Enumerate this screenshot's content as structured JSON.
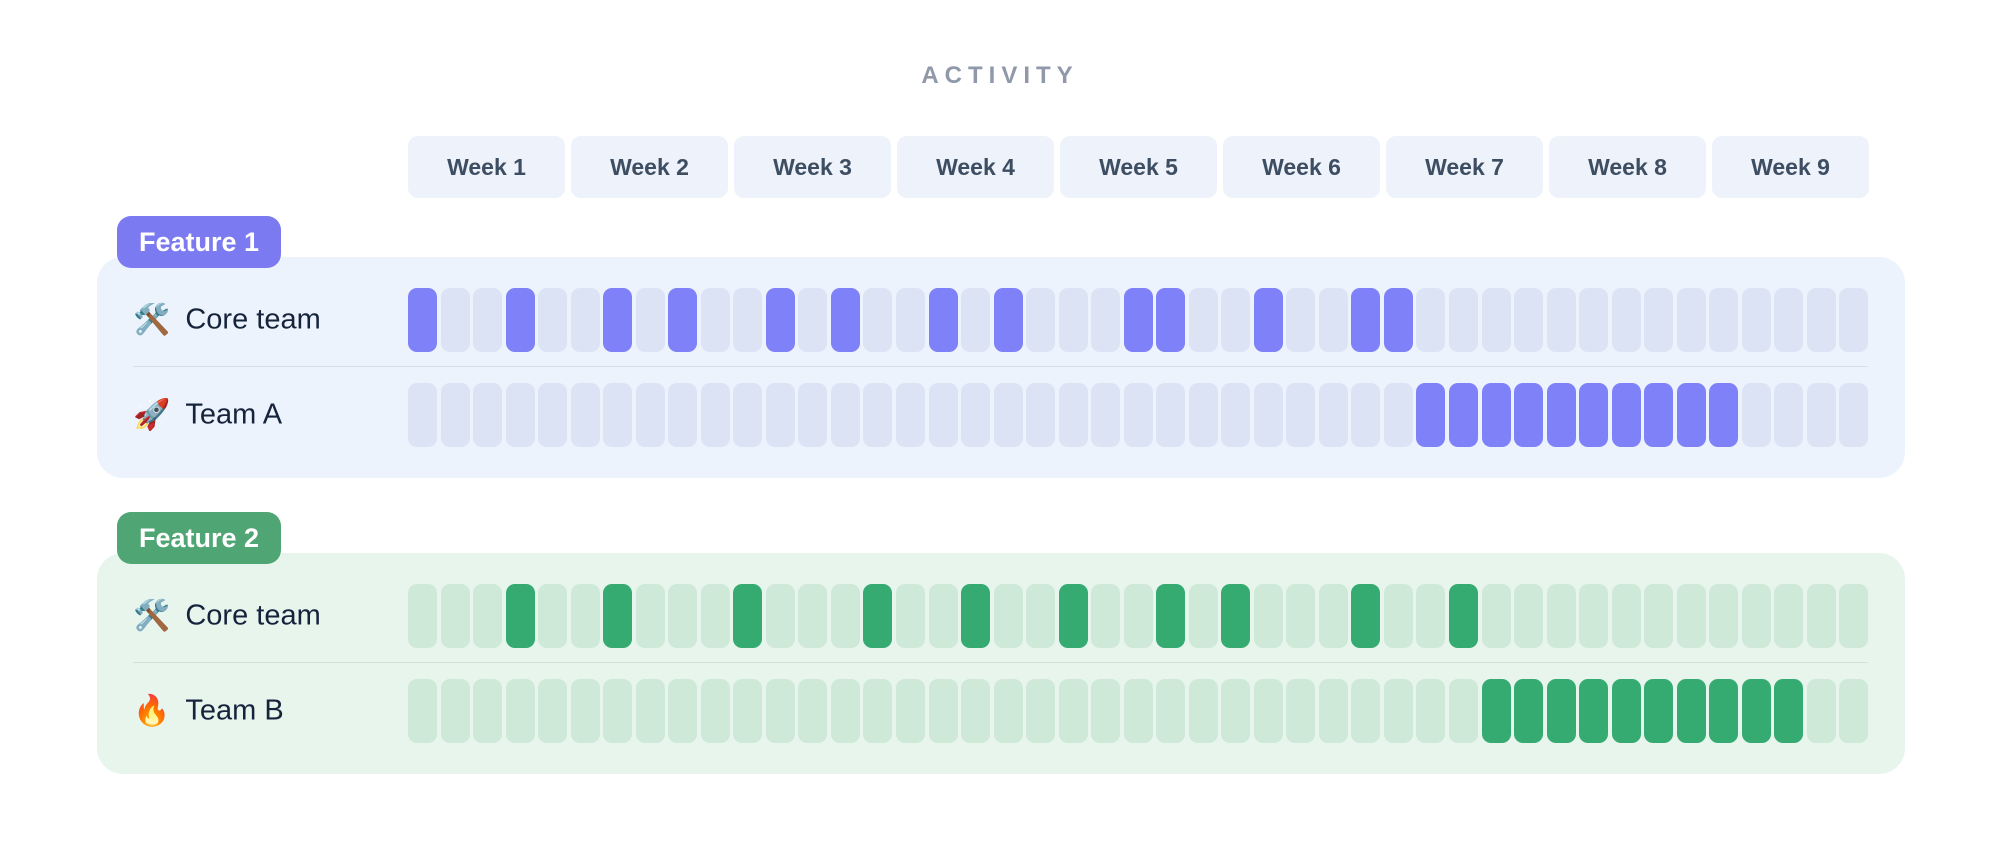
{
  "title": "ACTIVITY",
  "chart_data": {
    "type": "heatmap",
    "title": "ACTIVITY",
    "x_categories": [
      "Week 1",
      "Week 2",
      "Week 3",
      "Week 4",
      "Week 5",
      "Week 6",
      "Week 7",
      "Week 8",
      "Week 9"
    ],
    "cells_per_week": 5,
    "cells_per_row": 45,
    "cell_states": {
      "active": "filled",
      "inactive": "dim"
    },
    "groups": [
      {
        "name": "Feature 1",
        "colors": {
          "badge": "#7c7af0",
          "panel": "#edf3fc",
          "cell_dim": "#dbe3f5",
          "cell_active": "#7e81f8"
        },
        "rows": [
          {
            "label": "Core team",
            "icon": "🛠️",
            "icon_name": "hammer-and-wrench-icon",
            "active_cells": [
              1,
              4,
              7,
              9,
              12,
              14,
              17,
              19,
              23,
              24,
              27,
              30,
              31
            ]
          },
          {
            "label": "Team A",
            "icon": "🚀",
            "icon_name": "rocket-icon",
            "active_cells": [
              32,
              33,
              34,
              35,
              36,
              37,
              38,
              39,
              40,
              41
            ]
          }
        ]
      },
      {
        "name": "Feature 2",
        "colors": {
          "badge": "#4fa674",
          "panel": "#e8f5ed",
          "cell_dim": "#cfe9d9",
          "cell_active": "#35ab72"
        },
        "rows": [
          {
            "label": "Core team",
            "icon": "🛠️",
            "icon_name": "hammer-and-wrench-icon",
            "active_cells": [
              4,
              7,
              11,
              15,
              18,
              21,
              24,
              26,
              30,
              33
            ]
          },
          {
            "label": "Team B",
            "icon": "🔥",
            "icon_name": "fire-icon",
            "active_cells": [
              34,
              35,
              36,
              37,
              38,
              39,
              40,
              41,
              42,
              43
            ]
          }
        ]
      }
    ]
  },
  "colors": {
    "page_background": "#ffffff",
    "title_text": "#8f99a9",
    "week_tile_background": "#eef2fa",
    "week_tile_text": "#3d4e63",
    "row_label_text": "#16233c"
  }
}
